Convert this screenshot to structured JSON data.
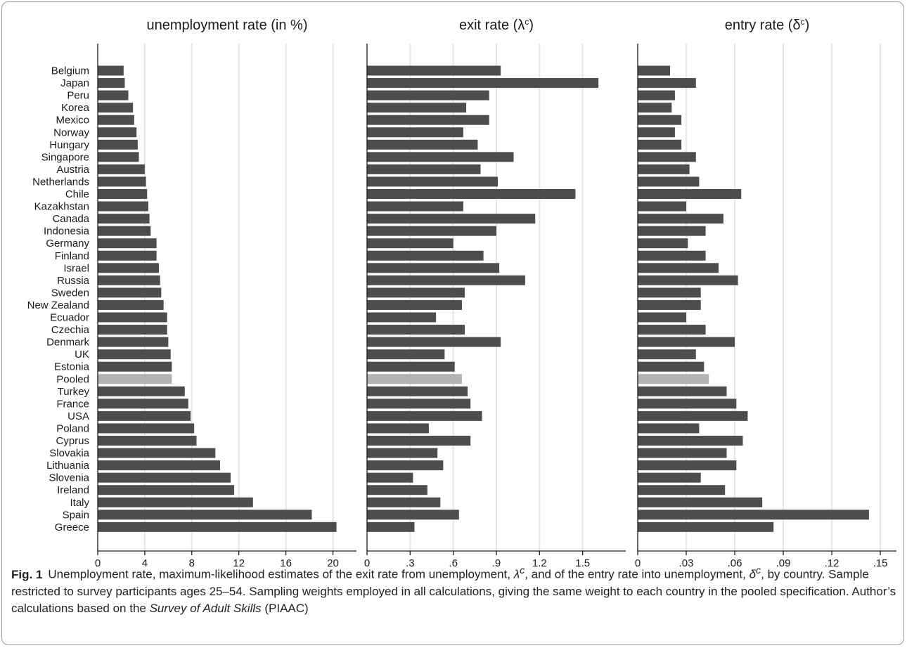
{
  "chart_data": {
    "type": "bar",
    "orientation": "horizontal",
    "categories": [
      "Belgium",
      "Japan",
      "Peru",
      "Korea",
      "Mexico",
      "Norway",
      "Hungary",
      "Singapore",
      "Austria",
      "Netherlands",
      "Chile",
      "Kazakhstan",
      "Canada",
      "Indonesia",
      "Germany",
      "Finland",
      "Israel",
      "Russia",
      "Sweden",
      "New Zealand",
      "Ecuador",
      "Czechia",
      "Denmark",
      "UK",
      "Estonia",
      "Pooled",
      "Turkey",
      "France",
      "USA",
      "Poland",
      "Cyprus",
      "Slovakia",
      "Lithuania",
      "Slovenia",
      "Ireland",
      "Italy",
      "Spain",
      "Greece"
    ],
    "highlight_category": "Pooled",
    "colors": {
      "bar": "#4d4d4d",
      "highlight": "#b3b3b3",
      "grid": "#e6e6e6",
      "axis": "#1a1a1a"
    },
    "grid": true,
    "panels": [
      {
        "title": "unemployment rate (in %)",
        "xlim": [
          0,
          22
        ],
        "ticks": [
          0,
          4,
          8,
          12,
          16,
          20
        ],
        "tick_labels": [
          "0",
          "4",
          "8",
          "12",
          "16",
          "20"
        ],
        "values": [
          2.2,
          2.3,
          2.6,
          3.0,
          3.1,
          3.3,
          3.4,
          3.5,
          4.0,
          4.1,
          4.2,
          4.3,
          4.4,
          4.5,
          5.0,
          5.0,
          5.2,
          5.3,
          5.4,
          5.6,
          5.9,
          5.9,
          6.0,
          6.2,
          6.3,
          6.3,
          7.4,
          7.7,
          7.9,
          8.2,
          8.4,
          10.0,
          10.4,
          11.3,
          11.6,
          13.2,
          18.2,
          20.3
        ]
      },
      {
        "title": "exit rate (λ",
        "title_sup": "c",
        "title_close": ")",
        "xlim": [
          0,
          1.8
        ],
        "ticks": [
          0,
          0.3,
          0.6,
          0.9,
          1.2,
          1.5
        ],
        "tick_labels": [
          "0",
          ".3",
          ".6",
          ".9",
          "1.2",
          "1.5"
        ],
        "values": [
          0.93,
          1.61,
          0.85,
          0.69,
          0.85,
          0.67,
          0.77,
          1.02,
          0.79,
          0.91,
          1.45,
          0.67,
          1.17,
          0.9,
          0.6,
          0.81,
          0.92,
          1.1,
          0.68,
          0.66,
          0.48,
          0.68,
          0.93,
          0.54,
          0.61,
          0.66,
          0.7,
          0.72,
          0.8,
          0.43,
          0.72,
          0.49,
          0.53,
          0.32,
          0.42,
          0.51,
          0.64,
          0.33
        ]
      },
      {
        "title": "entry rate (δ",
        "title_sup": "c",
        "title_close": ")",
        "xlim": [
          0,
          0.16
        ],
        "ticks": [
          0,
          0.03,
          0.06,
          0.09,
          0.12,
          0.15
        ],
        "tick_labels": [
          "0",
          ".03",
          ".06",
          ".09",
          ".12",
          ".15"
        ],
        "values": [
          0.02,
          0.036,
          0.023,
          0.021,
          0.027,
          0.023,
          0.027,
          0.036,
          0.032,
          0.038,
          0.064,
          0.03,
          0.053,
          0.042,
          0.031,
          0.042,
          0.05,
          0.062,
          0.039,
          0.039,
          0.03,
          0.042,
          0.06,
          0.036,
          0.041,
          0.044,
          0.055,
          0.061,
          0.068,
          0.038,
          0.065,
          0.055,
          0.061,
          0.039,
          0.054,
          0.077,
          0.143,
          0.084
        ]
      }
    ]
  },
  "caption": {
    "label": "Fig. 1",
    "part1": "Unemployment rate, maximum-likelihood estimates of the exit rate from unemployment, ",
    "lambda": "λ",
    "part2": ", and of the entry rate into unemployment, ",
    "delta": "δ",
    "sup": "c",
    "part3": ", by country. Sample restricted to survey participants ages 25–54. Sampling weights employed in all calculations, giving the same weight to each country in the pooled specification. Author’s calculations based on the ",
    "survey": "Survey of Adult Skills",
    "part4": " (PIAAC)"
  }
}
